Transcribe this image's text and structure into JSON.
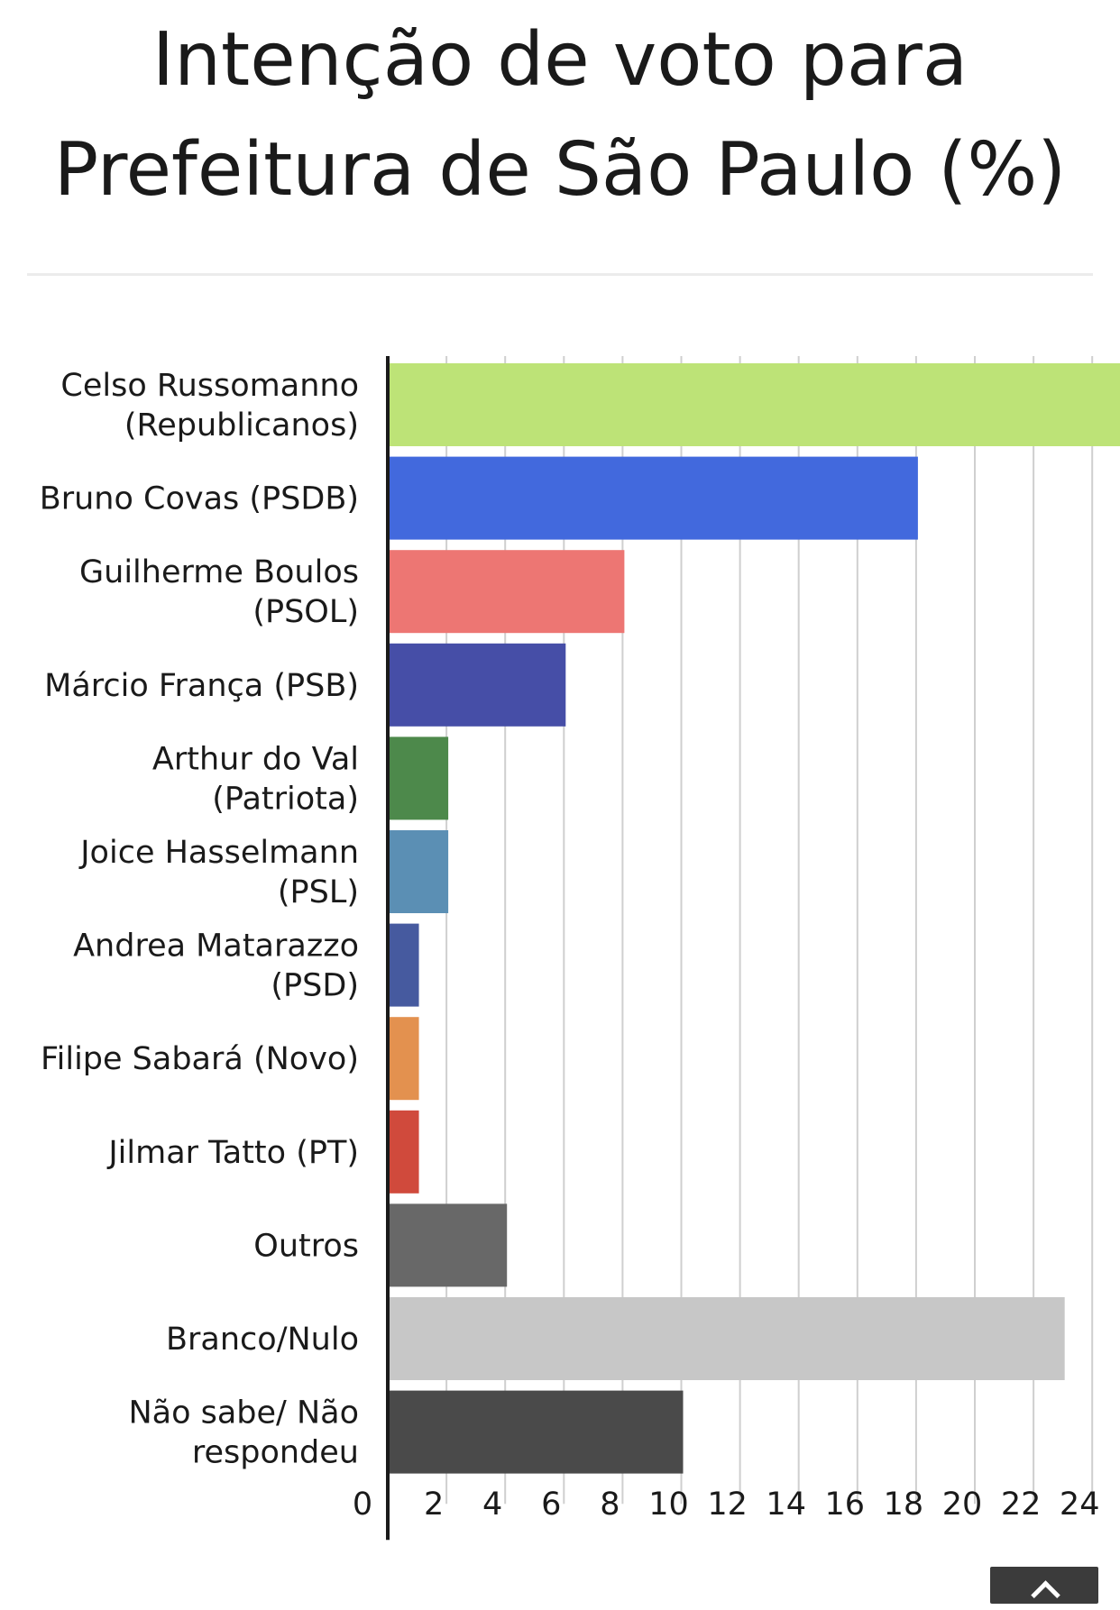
{
  "chart_data": {
    "type": "bar",
    "orientation": "horizontal",
    "title_lines": [
      "Intenção de voto para",
      "Prefeitura de São Paulo (%)"
    ],
    "categories": [
      [
        "Celso Russomanno",
        "(Republicanos)"
      ],
      [
        "Bruno Covas (PSDB)"
      ],
      [
        "Guilherme Boulos",
        "(PSOL)"
      ],
      [
        "Márcio França (PSB)"
      ],
      [
        "Arthur do Val",
        "(Patriota)"
      ],
      [
        "Joice Hasselmann",
        "(PSL)"
      ],
      [
        "Andrea Matarazzo",
        "(PSD)"
      ],
      [
        "Filipe Sabará (Novo)"
      ],
      [
        "Jilmar Tatto (PT)"
      ],
      [
        "Outros"
      ],
      [
        "Branco/Nulo"
      ],
      [
        "Não sabe/ Não",
        "respondeu"
      ]
    ],
    "values": [
      24,
      18,
      8,
      6,
      2,
      2,
      1,
      1,
      1,
      4,
      23,
      10
    ],
    "colors": [
      "#bde377",
      "#4269dd",
      "#ed7673",
      "#464ea7",
      "#4d894b",
      "#5b8fb4",
      "#465a9f",
      "#e3914f",
      "#d04a3c",
      "#686868",
      "#c7c7c7",
      "#4a4a4a"
    ],
    "xlim": [
      0,
      24
    ],
    "xticks": [
      0,
      2,
      4,
      6,
      8,
      10,
      12,
      14,
      16,
      18,
      20,
      22,
      24
    ],
    "grid": true,
    "legend": "none"
  },
  "icons": {
    "scroll_top": "chevron-up-icon"
  }
}
